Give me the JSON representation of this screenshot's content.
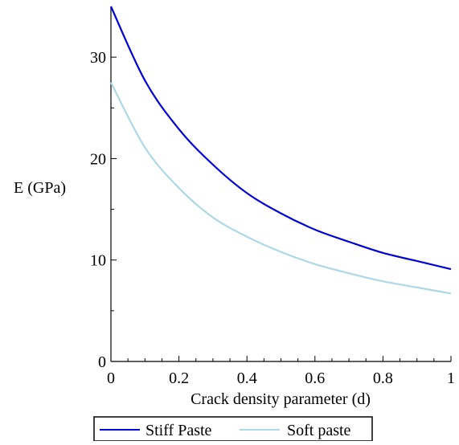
{
  "chart_data": {
    "type": "line",
    "title": "",
    "xlabel": "Crack density parameter (d)",
    "ylabel": "E (GPa)",
    "xlim": [
      0,
      1
    ],
    "ylim": [
      0,
      35
    ],
    "x_ticks": [
      0,
      0.2,
      0.4,
      0.6,
      0.8,
      1
    ],
    "x_tick_labels": [
      "0",
      "0.2",
      "0.4",
      "0.6",
      "0.8",
      "1"
    ],
    "y_ticks": [
      0,
      10,
      20,
      30
    ],
    "y_tick_labels": [
      "0",
      "10",
      "20",
      "30"
    ],
    "grid": false,
    "legend_position": "bottom",
    "x": [
      0,
      0.1,
      0.2,
      0.3,
      0.4,
      0.5,
      0.6,
      0.7,
      0.8,
      0.9,
      1.0
    ],
    "series": [
      {
        "name": "Stiff Paste",
        "color": "#0000dd",
        "values": [
          35.0,
          27.7,
          22.9,
          19.4,
          16.6,
          14.6,
          13.0,
          11.8,
          10.7,
          9.9,
          9.1
        ]
      },
      {
        "name": "Soft paste",
        "color": "#add8e6",
        "values": [
          27.5,
          21.1,
          17.1,
          14.2,
          12.3,
          10.8,
          9.6,
          8.7,
          7.9,
          7.3,
          6.7
        ]
      }
    ]
  }
}
